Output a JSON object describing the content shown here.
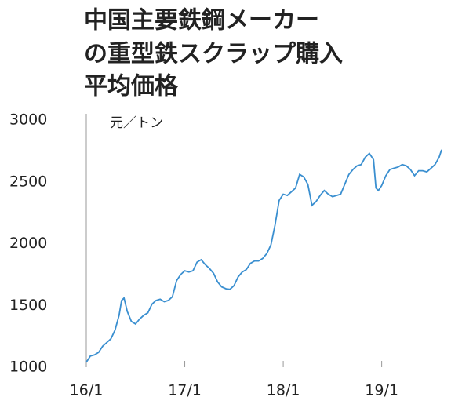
{
  "chart_data": {
    "type": "line",
    "title": [
      "中国主要鉄鋼メーカー",
      "の重型鉄スクラップ購入",
      "平均価格"
    ],
    "y_label": "元／トン",
    "x": [
      0,
      0.5,
      1,
      1.5,
      2,
      2.5,
      3,
      3.5,
      4,
      4.3,
      4.6,
      5,
      5.5,
      6,
      6.5,
      7,
      7.5,
      8,
      8.5,
      9,
      9.5,
      10,
      10.5,
      11,
      11.5,
      12,
      12.5,
      13,
      13.5,
      14,
      14.5,
      15,
      15.5,
      16,
      16.5,
      17,
      17.5,
      18,
      18.5,
      19,
      19.5,
      20,
      20.5,
      21,
      21.5,
      22,
      22.5,
      23,
      23.5,
      24,
      24.5,
      25,
      25.5,
      26,
      26.5,
      27,
      27.5,
      28,
      28.5,
      29,
      29.5,
      30,
      30.5,
      31,
      31.5,
      32,
      32.5,
      33,
      33.5,
      34,
      34.5,
      35,
      35.3,
      35.6,
      36,
      36.5,
      37,
      37.5,
      38,
      38.5,
      39,
      39.5,
      40,
      40.5,
      41,
      41.5,
      42,
      42.5,
      43,
      43.3
    ],
    "series": [
      {
        "name": "平均価格",
        "color": "#3a8fd0",
        "values": [
          1040,
          1090,
          1100,
          1120,
          1170,
          1200,
          1230,
          1300,
          1420,
          1540,
          1560,
          1450,
          1370,
          1350,
          1390,
          1420,
          1440,
          1510,
          1540,
          1550,
          1530,
          1540,
          1570,
          1700,
          1750,
          1780,
          1770,
          1780,
          1850,
          1870,
          1830,
          1800,
          1760,
          1690,
          1650,
          1635,
          1630,
          1660,
          1730,
          1770,
          1790,
          1840,
          1860,
          1860,
          1880,
          1920,
          1990,
          2150,
          2350,
          2400,
          2390,
          2420,
          2450,
          2560,
          2540,
          2480,
          2310,
          2340,
          2390,
          2430,
          2400,
          2380,
          2390,
          2400,
          2480,
          2560,
          2600,
          2630,
          2640,
          2700,
          2730,
          2680,
          2450,
          2430,
          2470,
          2550,
          2600,
          2610,
          2620,
          2640,
          2630,
          2600,
          2550,
          2590,
          2590,
          2580,
          2610,
          2640,
          2700,
          2760
        ]
      }
    ],
    "xlim": [
      0,
      43.3
    ],
    "xticks": [
      {
        "value": 0,
        "label": "16/1"
      },
      {
        "value": 12,
        "label": "17/1"
      },
      {
        "value": 24,
        "label": "18/1"
      },
      {
        "value": 36,
        "label": "19/1"
      }
    ],
    "ylim": [
      1000,
      3000
    ],
    "yticks": [
      1000,
      1500,
      2000,
      2500,
      3000
    ],
    "grid": false
  }
}
